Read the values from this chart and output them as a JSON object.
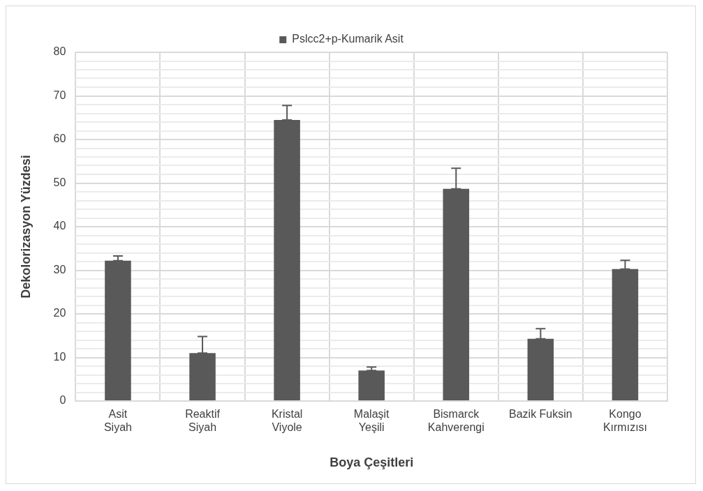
{
  "chart_data": {
    "type": "bar",
    "xlabel": "Boya Çeşitleri",
    "ylabel": "Dekolorizasyon Yüzdesi",
    "categories": [
      "Asit Siyah",
      "Reaktif Siyah",
      "Kristal Viyole",
      "Malaşit Yeşili",
      "Bismarck Kahverengi",
      "Bazik Fuksin",
      "Kongo Kırmızısı"
    ],
    "series": [
      {
        "name": "Pslcc2+p-Kumarik Asit",
        "color": "#595959",
        "values": [
          32.2,
          11.0,
          64.5,
          7.0,
          48.7,
          14.3,
          30.3
        ],
        "errors": [
          [
            32.2,
            33.3
          ],
          [
            11.0,
            14.8
          ],
          [
            64.5,
            67.8
          ],
          [
            7.0,
            7.8
          ],
          [
            48.7,
            53.4
          ],
          [
            14.3,
            16.6
          ],
          [
            30.3,
            32.3
          ]
        ]
      }
    ],
    "ylim": [
      0,
      80
    ],
    "yticks": [
      0,
      {
        "value": 2,
        "label": null
      },
      {
        "value": 4,
        "label": null
      },
      {
        "value": 6,
        "label": null
      },
      {
        "value": 8,
        "label": null
      },
      10,
      {
        "value": 12,
        "label": null
      },
      {
        "value": 14,
        "label": null
      },
      {
        "value": 16,
        "label": null
      },
      {
        "value": 18,
        "label": null
      },
      20,
      {
        "value": 22,
        "label": null
      },
      {
        "value": 24,
        "label": null
      },
      {
        "value": 26,
        "label": null
      },
      {
        "value": 28,
        "label": null
      },
      30,
      {
        "value": 32,
        "label": null
      },
      {
        "value": 34,
        "label": null
      },
      {
        "value": 36,
        "label": null
      },
      {
        "value": 38,
        "label": null
      },
      40,
      {
        "value": 42,
        "label": null
      },
      {
        "value": 44,
        "label": null
      },
      {
        "value": 46,
        "label": null
      },
      {
        "value": 48,
        "label": null
      },
      50,
      {
        "value": 52,
        "label": null
      },
      {
        "value": 54,
        "label": null
      },
      {
        "value": 56,
        "label": null
      },
      {
        "value": 58,
        "label": null
      },
      60,
      {
        "value": 62,
        "label": null
      },
      {
        "value": 64,
        "label": null
      },
      {
        "value": 66,
        "label": null
      },
      {
        "value": 68,
        "label": null
      },
      70,
      {
        "value": 72,
        "label": null
      },
      {
        "value": 74,
        "label": null
      },
      {
        "value": 76,
        "label": null
      },
      {
        "value": 78,
        "label": null
      },
      80
    ],
    "grid": true,
    "legend": "top"
  }
}
